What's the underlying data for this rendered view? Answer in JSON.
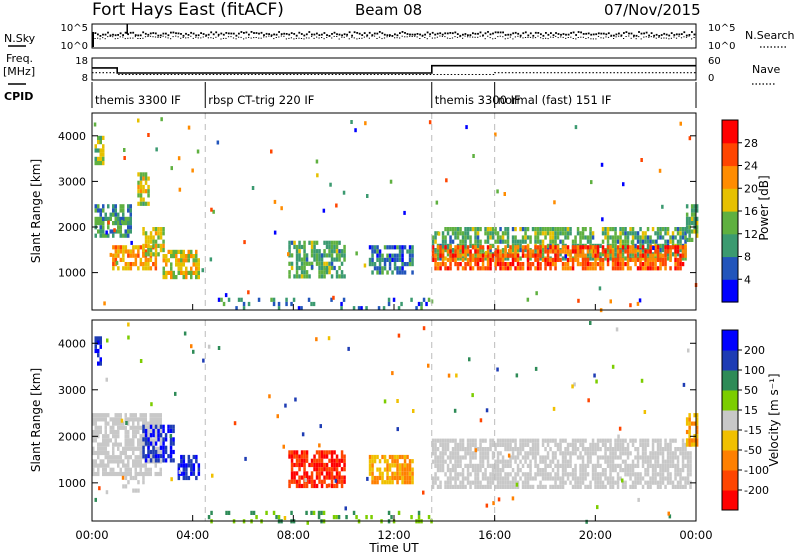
{
  "header": {
    "station": "Fort Hays East (fitACF)",
    "beam": "Beam 08",
    "date": "07/Nov/2015"
  },
  "left_labels": {
    "nsky": "N.Sky",
    "freq_line1": "Freq.",
    "freq_line2": "[MHz]",
    "cpid": "CPID"
  },
  "right_labels": {
    "nsearch": "N.Search",
    "nave": "Nave"
  },
  "noise_axis": {
    "left_ticks": [
      "10^5",
      "10^0"
    ],
    "right_ticks": [
      "10^5",
      "10^0"
    ]
  },
  "freq_axis": {
    "left_ticks": [
      "18",
      "8"
    ],
    "right_ticks": [
      "60",
      "0"
    ],
    "ylim": [
      8,
      18
    ],
    "nave_lim": [
      0,
      60
    ]
  },
  "cpid_segments": [
    {
      "label": "themis 3300 IF",
      "start_h": 0.0,
      "end_h": 4.5
    },
    {
      "label": "rbsp CT-trig 220 IF",
      "start_h": 4.5,
      "end_h": 13.5
    },
    {
      "label": "themis 3300 IF",
      "start_h": 13.5,
      "end_h": 16.0
    },
    {
      "label": "normal (fast) 151 IF",
      "start_h": 16.0,
      "end_h": 24.0
    }
  ],
  "xaxis": {
    "label": "Time UT",
    "ticks": [
      "00:00",
      "04:00",
      "08:00",
      "12:00",
      "16:00",
      "20:00",
      "00:00"
    ],
    "tick_values_h": [
      0,
      4,
      8,
      12,
      16,
      20,
      24
    ],
    "xlim_h": [
      0,
      24
    ]
  },
  "yaxis": {
    "label": "Slant Range [km]",
    "ticks": [
      "1000",
      "2000",
      "3000",
      "4000"
    ],
    "tick_values": [
      1000,
      2000,
      3000,
      4000
    ],
    "ylim": [
      180,
      4500
    ]
  },
  "power_colorbar": {
    "label": "Power [dB]",
    "ticks": [
      "4",
      "8",
      "12",
      "16",
      "20",
      "24",
      "28"
    ],
    "colors": [
      "#0000ff",
      "#2255bb",
      "#3b9a70",
      "#5fb040",
      "#e6c000",
      "#ff8c00",
      "#ff4500",
      "#ff0000"
    ]
  },
  "velocity_colorbar": {
    "label": "Velocity [m s⁻¹]",
    "ticks": [
      "200",
      "100",
      "50",
      "15",
      "-15",
      "-50",
      "-100",
      "-200"
    ],
    "colors": [
      "#0000ff",
      "#1e3cb4",
      "#2e8b57",
      "#7ccd00",
      "#c8c8c8",
      "#f0c000",
      "#ff8000",
      "#ff4500",
      "#ff0000"
    ]
  },
  "chart_data": [
    {
      "type": "line",
      "panel": "noise",
      "series": [
        {
          "name": "N.Sky",
          "level": "high",
          "style": "solid"
        },
        {
          "name": "N.Search",
          "level": "mid",
          "style": "dotted"
        }
      ]
    },
    {
      "type": "line",
      "panel": "frequency",
      "series": [
        {
          "name": "Freq.",
          "style": "solid",
          "points": [
            [
              0,
              13.5
            ],
            [
              1,
              13.5
            ],
            [
              1,
              11.2
            ],
            [
              13.5,
              11.2
            ],
            [
              13.5,
              14.5
            ],
            [
              24,
              14.5
            ]
          ]
        },
        {
          "name": "Nave",
          "style": "dotted",
          "points": [
            [
              0,
              20
            ],
            [
              1,
              20
            ],
            [
              1,
              15
            ],
            [
              16,
              15
            ],
            [
              16,
              20
            ],
            [
              24,
              20
            ]
          ]
        }
      ]
    },
    {
      "type": "heatmap",
      "panel": "power",
      "xlabel": "Time UT",
      "ylabel": "Slant Range [km]",
      "xlim": [
        0,
        24
      ],
      "ylim": [
        180,
        4500
      ],
      "clabel": "Power [dB]",
      "regions": [
        {
          "t0": 0.1,
          "t1": 0.4,
          "r0": 3400,
          "r1": 4000,
          "level": 16
        },
        {
          "t0": 0.1,
          "t1": 1.5,
          "r0": 1800,
          "r1": 2500,
          "level": 10
        },
        {
          "t0": 0.8,
          "t1": 2.5,
          "r0": 1050,
          "r1": 1600,
          "level": 22
        },
        {
          "t0": 2.0,
          "t1": 2.8,
          "r0": 1400,
          "r1": 2000,
          "level": 17
        },
        {
          "t0": 1.8,
          "t1": 2.2,
          "r0": 2500,
          "r1": 3200,
          "level": 16
        },
        {
          "t0": 2.8,
          "t1": 4.2,
          "r0": 900,
          "r1": 1500,
          "level": 18
        },
        {
          "t0": 7.8,
          "t1": 10.0,
          "r0": 900,
          "r1": 1700,
          "level": 12
        },
        {
          "t0": 11.0,
          "t1": 12.7,
          "r0": 1000,
          "r1": 1600,
          "level": 8
        },
        {
          "t0": 13.5,
          "t1": 23.6,
          "r0": 1350,
          "r1": 2000,
          "level": 12
        },
        {
          "t0": 13.5,
          "t1": 23.6,
          "r0": 1050,
          "r1": 1600,
          "level": 25
        },
        {
          "t0": 23.6,
          "t1": 24.0,
          "r0": 1700,
          "r1": 2500,
          "level": 13
        },
        {
          "t0": 4.5,
          "t1": 13.5,
          "r0": 180,
          "r1": 450,
          "level": 8
        }
      ]
    },
    {
      "type": "heatmap",
      "panel": "velocity",
      "xlabel": "Time UT",
      "ylabel": "Slant Range [km]",
      "xlim": [
        0,
        24
      ],
      "ylim": [
        180,
        4500
      ],
      "clabel": "Velocity [m s⁻¹]",
      "regions": [
        {
          "t0": 0.1,
          "t1": 0.3,
          "r0": 3600,
          "r1": 4150,
          "level": 200
        },
        {
          "t0": 0.0,
          "t1": 2.7,
          "r0": 1200,
          "r1": 2500,
          "level": 0
        },
        {
          "t0": 2.0,
          "t1": 3.2,
          "r0": 1450,
          "r1": 2250,
          "level": 200
        },
        {
          "t0": 3.4,
          "t1": 4.2,
          "r0": 1100,
          "r1": 1600,
          "level": 200
        },
        {
          "t0": 1.2,
          "t1": 2.0,
          "r0": 850,
          "r1": 1150,
          "level": 0
        },
        {
          "t0": 7.8,
          "t1": 10.0,
          "r0": 900,
          "r1": 1700,
          "level": -200
        },
        {
          "t0": 11.0,
          "t1": 12.7,
          "r0": 1050,
          "r1": 1600,
          "level": -50
        },
        {
          "t0": 13.5,
          "t1": 23.8,
          "r0": 950,
          "r1": 1950,
          "level": 0
        },
        {
          "t0": 23.6,
          "t1": 24.0,
          "r0": 1800,
          "r1": 2500,
          "level": -50
        },
        {
          "t0": 4.5,
          "t1": 13.5,
          "r0": 180,
          "r1": 400,
          "level": 50
        }
      ]
    }
  ]
}
